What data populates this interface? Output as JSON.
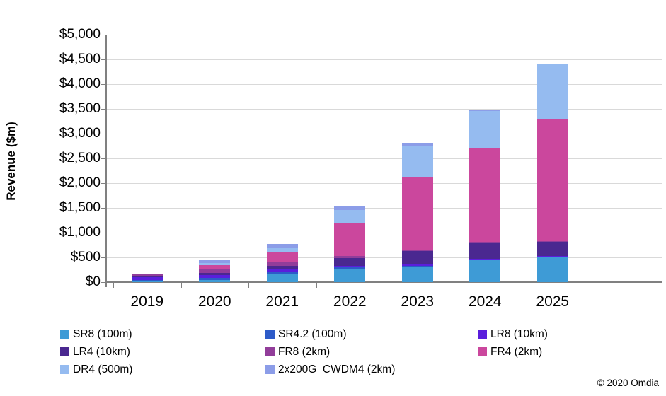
{
  "chart_data": {
    "type": "bar",
    "stacked": true,
    "ylabel": "Revenue ($m)",
    "categories": [
      "2019",
      "2020",
      "2021",
      "2022",
      "2023",
      "2024",
      "2025"
    ],
    "series": [
      {
        "name": "SR8 (100m)",
        "color": "#3E9BD6",
        "values": [
          10,
          45,
          160,
          270,
          300,
          440,
          510
        ]
      },
      {
        "name": "SR4.2 (100m)",
        "color": "#2D5BC8",
        "values": [
          35,
          35,
          45,
          30,
          35,
          20,
          10
        ]
      },
      {
        "name": "LR8 (10km)",
        "color": "#5A1EDC",
        "values": [
          60,
          60,
          55,
          25,
          20,
          10,
          5
        ]
      },
      {
        "name": "LR4 (10km)",
        "color": "#4A2890",
        "values": [
          20,
          50,
          70,
          160,
          270,
          330,
          300
        ]
      },
      {
        "name": "FR8 (2km)",
        "color": "#923D9A",
        "values": [
          45,
          65,
          85,
          40,
          30,
          15,
          10
        ]
      },
      {
        "name": "FR4 (2km)",
        "color": "#CB479D",
        "values": [
          0,
          85,
          200,
          680,
          1470,
          1890,
          2470
        ]
      },
      {
        "name": "DR4 (500m)",
        "color": "#95BBF0",
        "values": [
          0,
          50,
          70,
          255,
          630,
          755,
          1100
        ]
      },
      {
        "name": "2x200G  CWDM4 (2km)",
        "color": "#8C9DE8",
        "values": [
          0,
          50,
          85,
          70,
          60,
          30,
          10
        ]
      }
    ],
    "totals": [
      170,
      440,
      770,
      1530,
      2815,
      3490,
      4415
    ],
    "y_ticks": [
      "$0",
      "$500",
      "$1,000",
      "$1,500",
      "$2,000",
      "$2,500",
      "$3,000",
      "$3,500",
      "$4,000",
      "$4,500",
      "$5,000"
    ],
    "ylim": [
      0,
      5000
    ],
    "grid": true,
    "legend_position": "bottom"
  },
  "footer": {
    "copyright": "© 2020 Omdia"
  }
}
